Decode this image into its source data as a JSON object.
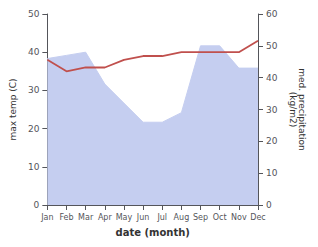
{
  "chart_data": {
    "type": "line",
    "xlabel": "date (month)",
    "ylabel": "max temp (C)",
    "y2label": "med. precipitation\n(kg/m2)",
    "categories": [
      "Jan",
      "Feb",
      "Mar",
      "Apr",
      "May",
      "Jun",
      "Jul",
      "Aug",
      "Sep",
      "Oct",
      "Nov",
      "Dec"
    ],
    "series": [
      {
        "type": "area",
        "color": "#c5cef0",
        "axis": "y2",
        "values": [
          46,
          47,
          48,
          38,
          32,
          26,
          26,
          29,
          50,
          50,
          43,
          43
        ]
      },
      {
        "type": "line",
        "color": "#c0504d",
        "values": [
          38,
          35,
          36,
          36,
          38,
          39,
          39,
          40,
          40,
          40,
          40,
          43
        ]
      }
    ],
    "ylim": [
      0,
      50
    ],
    "yticks": [
      0,
      10,
      20,
      30,
      40,
      50
    ],
    "y2lim": [
      0,
      60
    ],
    "y2ticks": [
      0,
      10,
      20,
      30,
      40,
      50,
      60
    ],
    "grid": false
  }
}
